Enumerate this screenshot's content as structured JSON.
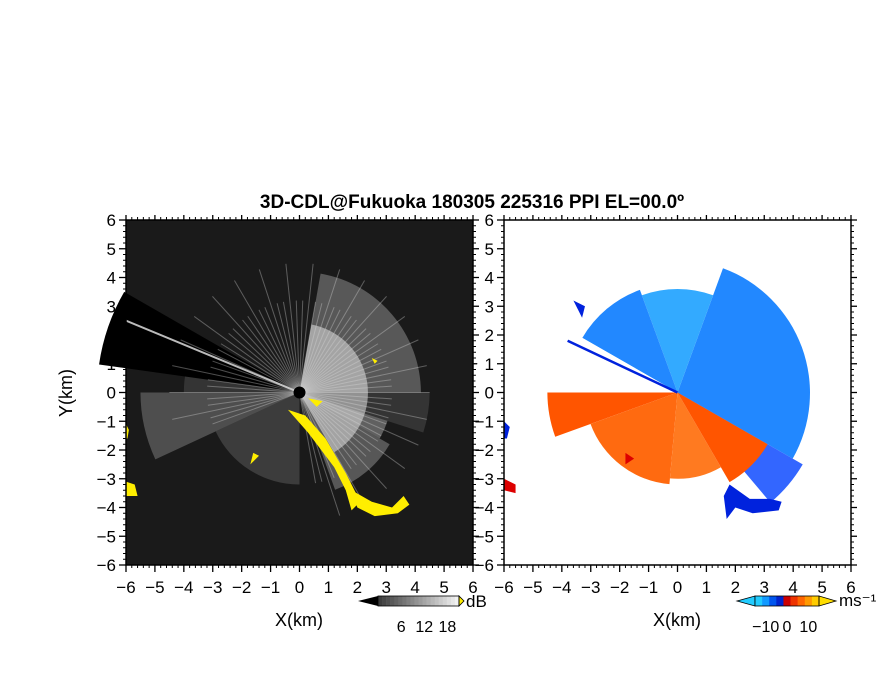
{
  "chart_data": {
    "title": "3D-CDL@Fukuoka 180305 225316 PPI EL=00.0º",
    "panels": [
      {
        "type": "heatmap",
        "field": "intensity",
        "xlabel": "X(km)",
        "ylabel": "Y(km)",
        "xlim": [
          -6,
          6
        ],
        "ylim": [
          -6,
          6
        ],
        "x_ticks": [
          "−6",
          "−5",
          "−4",
          "−3",
          "−2",
          "−1",
          "0",
          "1",
          "2",
          "3",
          "4",
          "5",
          "6"
        ],
        "y_ticks": [
          "−6",
          "−5",
          "−4",
          "−3",
          "−2",
          "−1",
          "0",
          "1",
          "2",
          "3",
          "4",
          "5",
          "6"
        ],
        "colorbar": {
          "unit": "dB",
          "tick_labels": [
            "6",
            "12",
            "18"
          ],
          "range": [
            0,
            21
          ]
        },
        "colors": {
          "background": "#1a1a1a",
          "high": "#f0f0f0",
          "overflow": "#ffee00"
        }
      },
      {
        "type": "heatmap",
        "field": "radial velocity",
        "xlabel": "X(km)",
        "ylabel": "",
        "xlim": [
          -6,
          6
        ],
        "ylim": [
          -6,
          6
        ],
        "x_ticks": [
          "−6",
          "−5",
          "−4",
          "−3",
          "−2",
          "−1",
          "0",
          "1",
          "2",
          "3",
          "4",
          "5",
          "6"
        ],
        "y_ticks": [
          "−6",
          "−5",
          "−4",
          "−3",
          "−2",
          "−1",
          "0",
          "1",
          "2",
          "3",
          "4",
          "5",
          "6"
        ],
        "colorbar": {
          "unit": "ms⁻¹",
          "tick_labels": [
            "−10",
            "0",
            "10"
          ],
          "range": [
            -15,
            15
          ]
        },
        "colors": {
          "approaching": "#2288ff",
          "receding": "#ff5500",
          "edge_blue": "#0022dd",
          "edge_red": "#dd0000"
        }
      }
    ]
  }
}
